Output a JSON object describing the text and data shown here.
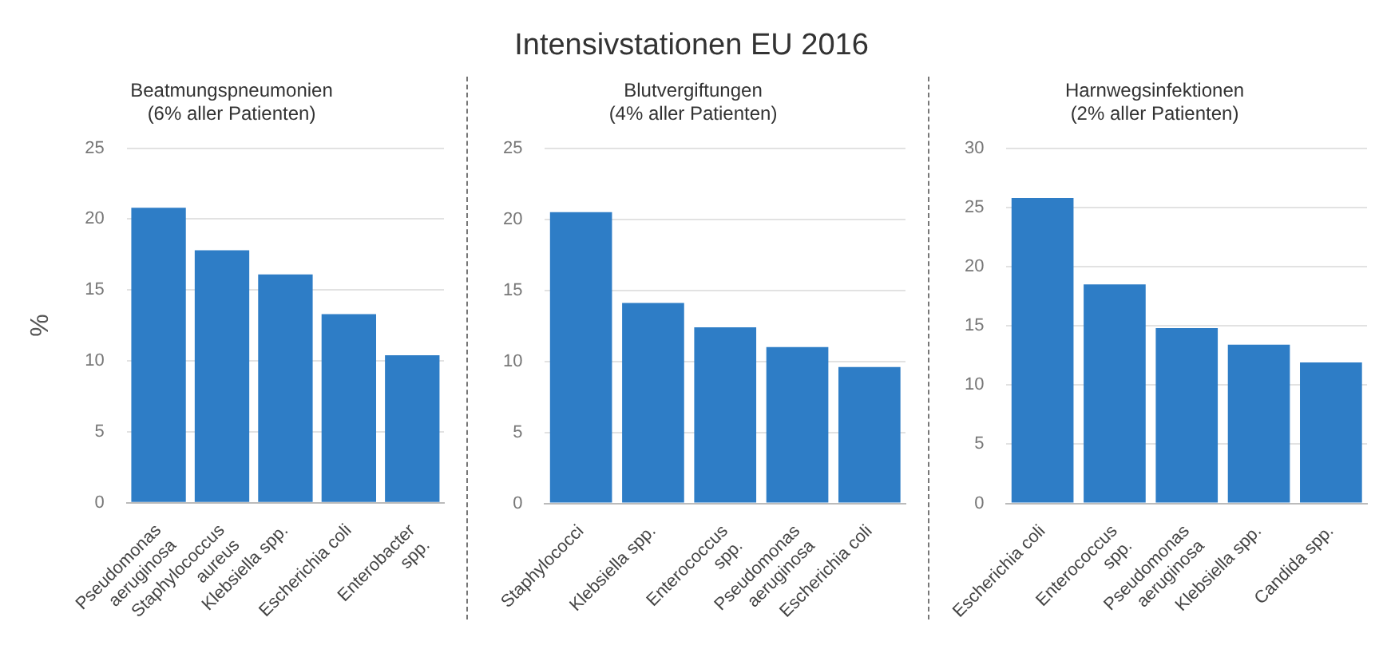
{
  "chart_data": [
    {
      "type": "other",
      "title": "Intensivstationen EU 2016"
    },
    {
      "type": "bar",
      "title": "Beatmungspneumonien (6% aller Patienten)",
      "ylabel": "%",
      "categories": [
        "Pseudomonas aeruginosa",
        "Staphylococcus aureus",
        "Klebsiella spp.",
        "Escherichia coli",
        "Enterobacter spp."
      ],
      "values": [
        20.8,
        17.8,
        16.1,
        13.3,
        10.4
      ],
      "color": "#2e7dc6",
      "ylim": [
        0,
        25
      ],
      "yticks": [
        0,
        5,
        10,
        15,
        20,
        25
      ],
      "grid": "y"
    },
    {
      "type": "bar",
      "title": "Blutvergiftungen (4% aller Patienten)",
      "categories": [
        "Staphylococci",
        "Klebsiella spp.",
        "Enterococcus spp.",
        "Pseudomonas aeruginosa",
        "Escherichia coli"
      ],
      "values": [
        20.5,
        14.1,
        12.4,
        11.0,
        9.6
      ],
      "color": "#2e7dc6",
      "ylim": [
        0,
        25
      ],
      "yticks": [
        0,
        5,
        10,
        15,
        20,
        25
      ],
      "grid": "y"
    },
    {
      "type": "bar",
      "title": "Harnwegsinfektionen (2% aller Patienten)",
      "categories": [
        "Escherichia coli",
        "Enterococcus spp.",
        "Pseudomonas aeruginosa",
        "Klebsiella spp.",
        "Candida spp."
      ],
      "values": [
        25.8,
        18.5,
        14.8,
        13.4,
        11.9
      ],
      "color": "#2e7dc6",
      "ylim": [
        0,
        30
      ],
      "yticks": [
        0,
        5,
        10,
        15,
        20,
        25,
        30
      ],
      "grid": "y"
    }
  ]
}
